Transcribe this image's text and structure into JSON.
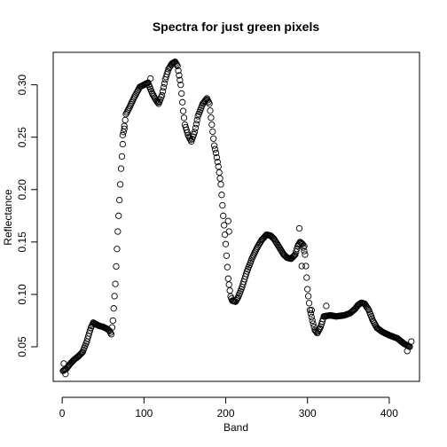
{
  "chart_data": {
    "type": "scatter",
    "title": "Spectra for just green pixels",
    "xlabel": "Band",
    "ylabel": "Reflectance",
    "xlim": [
      -11,
      437
    ],
    "ylim": [
      0.017,
      0.331
    ],
    "x_ticks": [
      0,
      100,
      200,
      300,
      400
    ],
    "y_ticks": [
      0.05,
      0.1,
      0.15,
      0.2,
      0.25,
      0.3
    ],
    "y_tick_labels": [
      "0.05",
      "0.10",
      "0.15",
      "0.20",
      "0.25",
      "0.30"
    ],
    "grid": false,
    "marker": "open-circle",
    "anchors": {
      "x": [
        1,
        5,
        10,
        15,
        20,
        25,
        30,
        35,
        38,
        45,
        50,
        55,
        58,
        60,
        62,
        65,
        68,
        72,
        75,
        78,
        82,
        88,
        95,
        100,
        105,
        110,
        115,
        118,
        122,
        126,
        130,
        134,
        138,
        141,
        145,
        148,
        150,
        154,
        158,
        162,
        166,
        172,
        177,
        180,
        183,
        186,
        188,
        191,
        194,
        197,
        200,
        203,
        206,
        208,
        212,
        215,
        220,
        226,
        232,
        238,
        244,
        250,
        255,
        259,
        263,
        267,
        271,
        275,
        280,
        285,
        288,
        291,
        294,
        297,
        300,
        303,
        306,
        309,
        312,
        316,
        320,
        328,
        335,
        345,
        352,
        358,
        362,
        366,
        370,
        375,
        380,
        385,
        392,
        400,
        410,
        418,
        425
      ],
      "y": [
        0.027,
        0.029,
        0.034,
        0.038,
        0.041,
        0.045,
        0.055,
        0.068,
        0.073,
        0.07,
        0.069,
        0.067,
        0.065,
        0.062,
        0.075,
        0.11,
        0.16,
        0.22,
        0.255,
        0.272,
        0.278,
        0.288,
        0.298,
        0.3,
        0.302,
        0.292,
        0.285,
        0.282,
        0.29,
        0.305,
        0.315,
        0.32,
        0.322,
        0.318,
        0.3,
        0.275,
        0.262,
        0.252,
        0.246,
        0.255,
        0.27,
        0.282,
        0.287,
        0.282,
        0.262,
        0.242,
        0.235,
        0.222,
        0.205,
        0.175,
        0.148,
        0.115,
        0.098,
        0.094,
        0.093,
        0.097,
        0.107,
        0.122,
        0.134,
        0.144,
        0.152,
        0.157,
        0.156,
        0.153,
        0.148,
        0.143,
        0.138,
        0.135,
        0.134,
        0.138,
        0.146,
        0.15,
        0.148,
        0.138,
        0.105,
        0.085,
        0.075,
        0.066,
        0.063,
        0.069,
        0.079,
        0.08,
        0.079,
        0.08,
        0.082,
        0.086,
        0.09,
        0.092,
        0.091,
        0.085,
        0.075,
        0.068,
        0.064,
        0.061,
        0.058,
        0.053,
        0.05
      ]
    },
    "outliers": [
      {
        "x": 2,
        "y": 0.034
      },
      {
        "x": 4,
        "y": 0.024
      },
      {
        "x": 74,
        "y": 0.252
      },
      {
        "x": 76,
        "y": 0.258
      },
      {
        "x": 108,
        "y": 0.306
      },
      {
        "x": 203,
        "y": 0.17
      },
      {
        "x": 204,
        "y": 0.16
      },
      {
        "x": 290,
        "y": 0.163
      },
      {
        "x": 293,
        "y": 0.127
      },
      {
        "x": 296,
        "y": 0.146
      },
      {
        "x": 305,
        "y": 0.085
      },
      {
        "x": 323,
        "y": 0.089
      },
      {
        "x": 422,
        "y": 0.046
      },
      {
        "x": 427,
        "y": 0.055
      }
    ]
  }
}
